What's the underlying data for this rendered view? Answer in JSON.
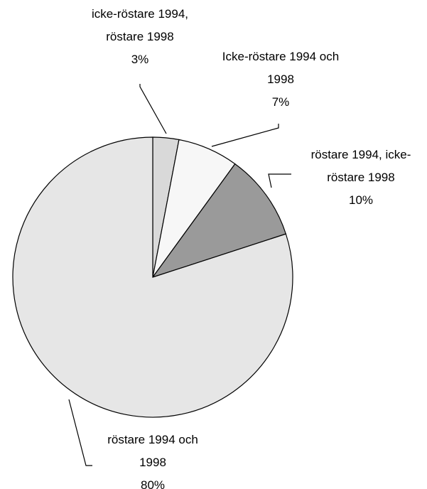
{
  "chart_data": {
    "type": "pie",
    "categories": [
      "icke-röstare 1994, röstare 1998",
      "Icke-röstare 1994 och 1998",
      "röstare 1994, icke-röstare 1998",
      "röstare 1994 och 1998"
    ],
    "values": [
      3,
      7,
      10,
      80
    ],
    "value_labels": [
      "3%",
      "7%",
      "10%",
      "80%"
    ],
    "colors": [
      "#d9d9d9",
      "#f7f7f7",
      "#9a9a9a",
      "#e6e6e6"
    ]
  }
}
